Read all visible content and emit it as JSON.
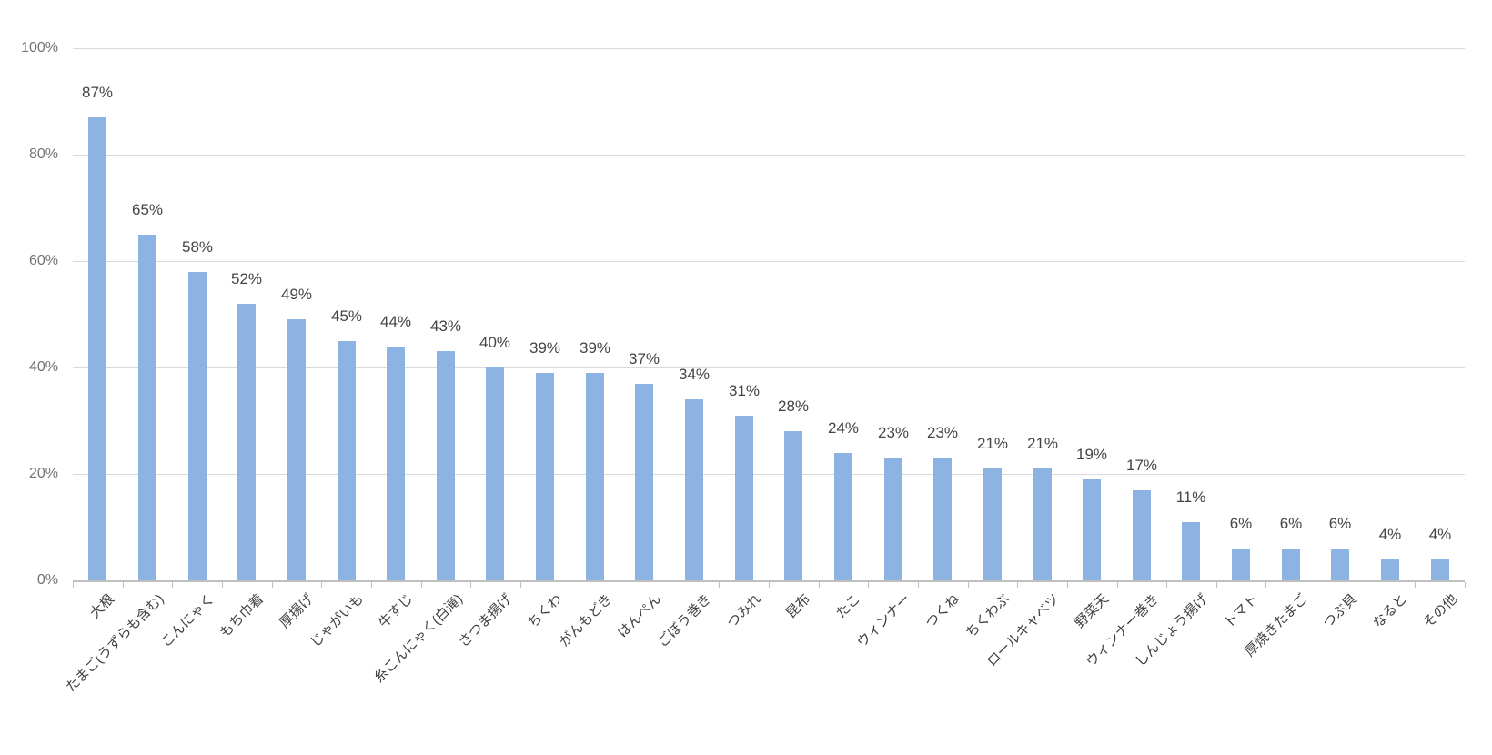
{
  "chart_data": {
    "type": "bar",
    "title": "",
    "xlabel": "",
    "ylabel": "",
    "categories": [
      "大根",
      "たまご(うずらも含む)",
      "こんにゃく",
      "もち巾着",
      "厚揚げ",
      "じゃがいも",
      "牛すじ",
      "糸こんにゃく(白滝)",
      "さつま揚げ",
      "ちくわ",
      "がんもどき",
      "はんぺん",
      "ごぼう巻き",
      "つみれ",
      "昆布",
      "たこ",
      "ウィンナー",
      "つくね",
      "ちくわぶ",
      "ロールキャベツ",
      "野菜天",
      "ウィンナー巻き",
      "しんじょう揚げ",
      "トマト",
      "厚焼きたまご",
      "つぶ貝",
      "なると",
      "その他"
    ],
    "values": [
      87,
      65,
      58,
      52,
      49,
      45,
      44,
      43,
      40,
      39,
      39,
      37,
      34,
      31,
      28,
      24,
      23,
      23,
      21,
      21,
      19,
      17,
      11,
      6,
      6,
      6,
      4,
      4
    ],
    "value_labels": [
      "87%",
      "65%",
      "58%",
      "52%",
      "49%",
      "45%",
      "44%",
      "43%",
      "40%",
      "39%",
      "39%",
      "37%",
      "34%",
      "31%",
      "28%",
      "24%",
      "23%",
      "23%",
      "21%",
      "21%",
      "19%",
      "17%",
      "11%",
      "6%",
      "6%",
      "6%",
      "4%",
      "4%"
    ],
    "ylim": [
      0,
      100
    ],
    "ytick_values": [
      0,
      20,
      40,
      60,
      80,
      100
    ],
    "ytick_labels": [
      "0%",
      "20%",
      "40%",
      "60%",
      "80%",
      "100%"
    ],
    "grid": true,
    "legend": false,
    "x_labels_rotation_deg": 45,
    "colors": {
      "bar_fill": "#8DB3E2",
      "gridline": "#D9D9D9",
      "axis_line": "#BFBFBF",
      "tick_mark": "#BFBFBF",
      "y_tick_text": "#737373",
      "value_label_text": "#444444",
      "category_label_text": "#3F3F3F",
      "background": "#FFFFFF"
    }
  }
}
